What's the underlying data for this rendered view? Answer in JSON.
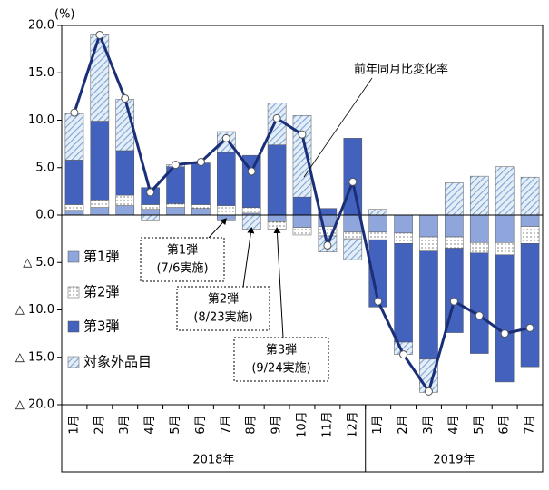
{
  "chart_data": {
    "type": "stacked-bar-line",
    "y_unit": "(%)",
    "categories": [
      "1月",
      "2月",
      "3月",
      "4月",
      "5月",
      "6月",
      "7月",
      "8月",
      "9月",
      "10月",
      "11月",
      "12月",
      "1月",
      "2月",
      "3月",
      "4月",
      "5月",
      "6月",
      "7月"
    ],
    "year_labels": [
      "2018年",
      "2019年"
    ],
    "ylim": [
      -20,
      20
    ],
    "yticks": [
      {
        "value": 20,
        "label": "20.0"
      },
      {
        "value": 15,
        "label": "15.0"
      },
      {
        "value": 10,
        "label": "10.0"
      },
      {
        "value": 5,
        "label": "5.0"
      },
      {
        "value": 0,
        "label": "0.0"
      },
      {
        "value": -5,
        "label": "△ 5.0"
      },
      {
        "value": -10,
        "label": "△ 10.0"
      },
      {
        "value": -15,
        "label": "△ 15.0"
      },
      {
        "value": -20,
        "label": "△ 20.0"
      }
    ],
    "series": [
      {
        "name": "第1弾",
        "color": "#8fa6dc",
        "pattern": "solid",
        "values": [
          0.5,
          0.8,
          1.0,
          0.6,
          0.8,
          0.7,
          -0.6,
          0.2,
          -0.7,
          -1.3,
          -1.2,
          -1.8,
          -1.8,
          -1.9,
          -2.3,
          -2.3,
          -2.9,
          -2.9,
          -1.2
        ]
      },
      {
        "name": "第2弾",
        "color": "#ffffff",
        "pattern": "dots",
        "values": [
          0.6,
          0.8,
          1.1,
          0.5,
          0.4,
          0.4,
          1.0,
          0.6,
          -0.8,
          -0.8,
          -1.0,
          -0.7,
          -0.8,
          -1.1,
          -1.5,
          -1.2,
          -1.1,
          -1.3,
          -1.8
        ]
      },
      {
        "name": "第3弾",
        "color": "#4262bd",
        "pattern": "solid",
        "values": [
          4.7,
          8.3,
          4.7,
          1.8,
          3.9,
          4.4,
          5.6,
          5.5,
          7.4,
          1.9,
          0.7,
          8.1,
          -7.1,
          -10.4,
          -11.4,
          -8.9,
          -10.6,
          -13.4,
          -13.0
        ]
      },
      {
        "name": "対象外品目",
        "color": "#7fa3d2",
        "pattern": "hatch",
        "values": [
          4.9,
          9.1,
          5.4,
          -0.6,
          0.2,
          0.0,
          2.2,
          -1.5,
          4.4,
          8.6,
          -1.7,
          -2.2,
          0.6,
          -1.3,
          -3.5,
          3.4,
          4.1,
          5.1,
          4.0
        ]
      },
      {
        "name": "前年同月比変化率",
        "type": "line",
        "color": "#1a2f78",
        "values": [
          10.8,
          19.0,
          12.3,
          2.4,
          5.3,
          5.6,
          8.1,
          4.6,
          10.2,
          8.5,
          -3.2,
          3.5,
          -9.1,
          -14.7,
          -18.6,
          -9.1,
          -10.6,
          -12.5,
          -11.9
        ]
      }
    ],
    "annotations": [
      {
        "lines": [
          "第1弾",
          "(7/6実施)"
        ]
      },
      {
        "lines": [
          "第2弾",
          "(8/23実施)"
        ]
      },
      {
        "lines": [
          "第3弾",
          "(9/24実施)"
        ]
      }
    ]
  }
}
